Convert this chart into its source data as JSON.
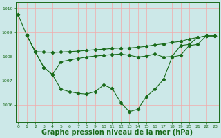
{
  "line1_x": [
    0,
    1,
    2,
    3,
    4,
    5,
    6,
    7,
    8,
    9,
    10,
    11,
    12,
    13,
    14,
    15,
    16,
    17,
    18,
    19,
    20,
    21,
    22,
    23
  ],
  "line1_y": [
    1009.72,
    1008.88,
    1008.2,
    1008.18,
    1008.17,
    1008.18,
    1008.2,
    1008.22,
    1008.25,
    1008.28,
    1008.3,
    1008.33,
    1008.35,
    1008.35,
    1008.38,
    1008.42,
    1008.48,
    1008.52,
    1008.58,
    1008.62,
    1008.72,
    1008.78,
    1008.85,
    1008.85
  ],
  "line2_x": [
    1,
    2,
    3,
    4,
    5,
    6,
    7,
    8,
    9,
    10,
    11,
    12,
    13,
    14,
    15,
    16,
    17,
    18,
    19,
    20,
    21,
    22,
    23
  ],
  "line2_y": [
    1008.88,
    1008.2,
    1007.55,
    1007.25,
    1007.78,
    1007.85,
    1007.92,
    1007.98,
    1008.02,
    1008.05,
    1008.08,
    1008.1,
    1008.05,
    1007.98,
    1008.02,
    1008.1,
    1007.98,
    1008.0,
    1008.45,
    1008.5,
    1008.78,
    1008.85,
    1008.85
  ],
  "line3_x": [
    1,
    2,
    3,
    4,
    5,
    6,
    7,
    8,
    9,
    10,
    11,
    12,
    13,
    14,
    15,
    16,
    17,
    18,
    19,
    20,
    21,
    22,
    23
  ],
  "line3_y": [
    1008.88,
    1008.2,
    1007.55,
    1007.25,
    1006.65,
    1006.55,
    1006.48,
    1006.45,
    1006.55,
    1006.82,
    1006.68,
    1006.1,
    1005.72,
    1005.82,
    1006.35,
    1006.65,
    1007.05,
    1007.98,
    1008.05,
    1008.45,
    1008.5,
    1008.85,
    1008.85
  ],
  "line_color": "#1a6b1a",
  "marker": "D",
  "marker_size": 2.2,
  "bg_color": "#cce8e8",
  "grid_color": "#f2aaaa",
  "xlabel": "Graphe pression niveau de la mer (hPa)",
  "xlabel_color": "#1a6b1a",
  "xlabel_fontsize": 7.0,
  "ylim": [
    1005.3,
    1010.25
  ],
  "yticks": [
    1006,
    1007,
    1008,
    1009,
    1010
  ],
  "xticks": [
    0,
    1,
    2,
    3,
    4,
    5,
    6,
    7,
    8,
    9,
    10,
    11,
    12,
    13,
    14,
    15,
    16,
    17,
    18,
    19,
    20,
    21,
    22,
    23
  ],
  "tick_color": "#1a6b1a",
  "tick_fontsize": 4.5,
  "axis_color": "#1a6b1a",
  "linewidth": 0.8
}
